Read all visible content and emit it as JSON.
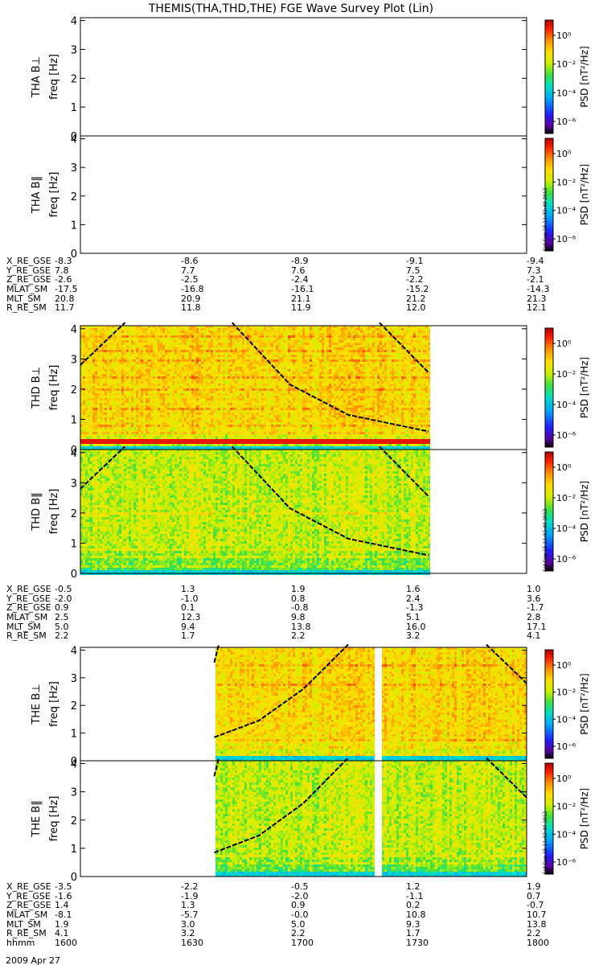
{
  "title": "THEMIS(THA,THD,THE) FGE Wave Survey Plot (Lin)",
  "date_label": "2009 Apr 27",
  "colorbar": {
    "label": "PSD [nT²/Hz]",
    "ticks": [
      "10⁰",
      "10⁻²",
      "10⁻⁴",
      "10⁻⁶"
    ],
    "stamp": "Sat Sep 15 11:32:40 2012"
  },
  "colors": {
    "panel_border": "#000000",
    "curve": "#000000"
  },
  "chart_data": [
    {
      "type": "heatmap",
      "probe": "THA",
      "component": "B⊥",
      "ylabel": "THA B⊥\nfreq [Hz]",
      "ylim": [
        0,
        4.1
      ],
      "yticks": [
        "0",
        "1",
        "2",
        "3",
        "4"
      ],
      "time_range": [
        "1600",
        "1800"
      ],
      "has_data": false,
      "data_end": null,
      "data_gaps": []
    },
    {
      "type": "heatmap",
      "probe": "THA",
      "component": "B‖",
      "ylabel": "THA B‖\nfreq [Hz]",
      "ylim": [
        0,
        4.1
      ],
      "yticks": [
        "0",
        "1",
        "2",
        "3",
        "4"
      ],
      "time_range": [
        "1600",
        "1800"
      ],
      "has_data": false,
      "data_end": null,
      "data_gaps": []
    },
    {
      "type": "heatmap",
      "probe": "THD",
      "component": "B⊥",
      "ylabel": "THD B⊥\nfreq [Hz]",
      "ylim": [
        0,
        4.1
      ],
      "yticks": [
        "0",
        "1",
        "2",
        "3",
        "4"
      ],
      "time_range": [
        "1600",
        "1800"
      ],
      "has_data": true,
      "data_start": 0,
      "data_end": 0.78,
      "data_gaps": [],
      "band_lines_hz": [
        0.3,
        0.55,
        0.8,
        1.35,
        2.0,
        2.4,
        3.0,
        3.3,
        3.75
      ],
      "red_line_hz": 0.3,
      "curves": [
        {
          "t": [
            0,
            0.1
          ],
          "f": [
            2.8,
            4.2
          ]
        },
        {
          "t": [
            0.34,
            0.47,
            0.6,
            0.78
          ],
          "f": [
            4.2,
            2.15,
            1.15,
            0.6
          ]
        },
        {
          "t": [
            0.67,
            0.78
          ],
          "f": [
            4.2,
            2.55
          ]
        }
      ]
    },
    {
      "type": "heatmap",
      "probe": "THD",
      "component": "B‖",
      "ylabel": "THD B‖\nfreq [Hz]",
      "ylim": [
        0,
        4.1
      ],
      "yticks": [
        "0",
        "1",
        "2",
        "3",
        "4"
      ],
      "time_range": [
        "1600",
        "1800"
      ],
      "has_data": true,
      "data_start": 0,
      "data_end": 0.78,
      "data_gaps": [],
      "band_lines_hz": [
        0.3,
        0.55,
        0.8,
        2.0
      ],
      "curves": [
        {
          "t": [
            0,
            0.1
          ],
          "f": [
            2.8,
            4.2
          ]
        },
        {
          "t": [
            0.34,
            0.47,
            0.6,
            0.78
          ],
          "f": [
            4.2,
            2.15,
            1.15,
            0.6
          ]
        },
        {
          "t": [
            0.67,
            0.78
          ],
          "f": [
            4.2,
            2.55
          ]
        }
      ]
    },
    {
      "type": "heatmap",
      "probe": "THE",
      "component": "B⊥",
      "ylabel": "THE B⊥\nfreq [Hz]",
      "ylim": [
        0,
        4.1
      ],
      "yticks": [
        "0",
        "1",
        "2",
        "3",
        "4"
      ],
      "time_range": [
        "1600",
        "1800"
      ],
      "has_data": true,
      "data_start": 0.3,
      "data_end": 1.0,
      "data_gaps": [
        [
          0.656,
          0.672
        ]
      ],
      "band_lines_hz": [
        0.3,
        0.55,
        0.8,
        2.8,
        3.5
      ],
      "curves": [
        {
          "t": [
            0.3,
            0.4,
            0.5,
            0.6
          ],
          "f": [
            0.85,
            1.45,
            2.6,
            4.2
          ]
        },
        {
          "t": [
            0.3,
            0.31
          ],
          "f": [
            3.55,
            4.2
          ]
        },
        {
          "t": [
            0.91,
            1.0
          ],
          "f": [
            4.2,
            2.8
          ]
        }
      ]
    },
    {
      "type": "heatmap",
      "probe": "THE",
      "component": "B‖",
      "ylabel": "THE B‖\nfreq [Hz]",
      "ylim": [
        0,
        4.1
      ],
      "yticks": [
        "0",
        "1",
        "2",
        "3",
        "4"
      ],
      "time_range": [
        "1600",
        "1800"
      ],
      "has_data": true,
      "data_start": 0.3,
      "data_end": 1.0,
      "data_gaps": [
        [
          0.656,
          0.672
        ]
      ],
      "band_lines_hz": [
        0.3,
        0.55,
        0.8
      ],
      "curves": [
        {
          "t": [
            0.3,
            0.4,
            0.5,
            0.6
          ],
          "f": [
            0.85,
            1.45,
            2.6,
            4.2
          ]
        },
        {
          "t": [
            0.3,
            0.31
          ],
          "f": [
            3.55,
            4.2
          ]
        },
        {
          "t": [
            0.91,
            1.0
          ],
          "f": [
            4.2,
            2.8
          ]
        }
      ]
    }
  ],
  "ephemeris": [
    {
      "rows": [
        {
          "label": "X_RE_GSE",
          "values": [
            "-8.3",
            "-8.6",
            "-8.9",
            "-9.1",
            "-9.4"
          ]
        },
        {
          "label": "Y_RE_GSE",
          "values": [
            "7.8",
            "7.7",
            "7.6",
            "7.5",
            "7.3"
          ]
        },
        {
          "label": "Z_RE_GSE",
          "values": [
            "-2.6",
            "-2.5",
            "-2.4",
            "-2.2",
            "-2.1"
          ]
        },
        {
          "label": "MLAT_SM",
          "values": [
            "-17.5",
            "-16.8",
            "-16.1",
            "-15.2",
            "-14.3"
          ]
        },
        {
          "label": "MLT_SM",
          "values": [
            "20.8",
            "20.9",
            "21.1",
            "21.2",
            "21.3"
          ]
        },
        {
          "label": "R_RE_SM",
          "values": [
            "11.7",
            "11.8",
            "11.9",
            "12.0",
            "12.1"
          ]
        }
      ]
    },
    {
      "rows": [
        {
          "label": "X_RE_GSE",
          "values": [
            "-0.5",
            "1.3",
            "1.9",
            "1.6",
            "1.0"
          ]
        },
        {
          "label": "Y_RE_GSE",
          "values": [
            "-2.0",
            "-1.0",
            "0.8",
            "2.4",
            "3.6"
          ]
        },
        {
          "label": "Z_RE_GSE",
          "values": [
            "0.9",
            "0.1",
            "-0.8",
            "-1.3",
            "-1.7"
          ]
        },
        {
          "label": "MLAT_SM",
          "values": [
            "2.5",
            "12.3",
            "9.8",
            "5.1",
            "2.8"
          ]
        },
        {
          "label": "MLT_SM",
          "values": [
            "5.0",
            "9.4",
            "13.8",
            "16.0",
            "17.1"
          ]
        },
        {
          "label": "R_RE_SM",
          "values": [
            "2.2",
            "1.7",
            "2.2",
            "3.2",
            "4.1"
          ]
        }
      ]
    },
    {
      "rows": [
        {
          "label": "X_RE_GSE",
          "values": [
            "-3.5",
            "-2.2",
            "-0.5",
            "1.2",
            "1.9"
          ]
        },
        {
          "label": "Y_RE_GSE",
          "values": [
            "-1.6",
            "-1.9",
            "-2.0",
            "-1.1",
            "0.7"
          ]
        },
        {
          "label": "Z_RE_GSE",
          "values": [
            "1.4",
            "1.3",
            "0.9",
            "0.2",
            "-0.7"
          ]
        },
        {
          "label": "MLAT_SM",
          "values": [
            "-8.1",
            "-5.7",
            "-0.0",
            "10.8",
            "10.7"
          ]
        },
        {
          "label": "MLT_SM",
          "values": [
            "1.9",
            "3.0",
            "5.0",
            "9.3",
            "13.8"
          ]
        },
        {
          "label": "R_RE_SM",
          "values": [
            "4.1",
            "3.2",
            "2.2",
            "1.7",
            "2.2"
          ]
        },
        {
          "label": "hhmm",
          "values": [
            "1600",
            "1630",
            "1700",
            "1730",
            "1800"
          ]
        }
      ]
    }
  ]
}
